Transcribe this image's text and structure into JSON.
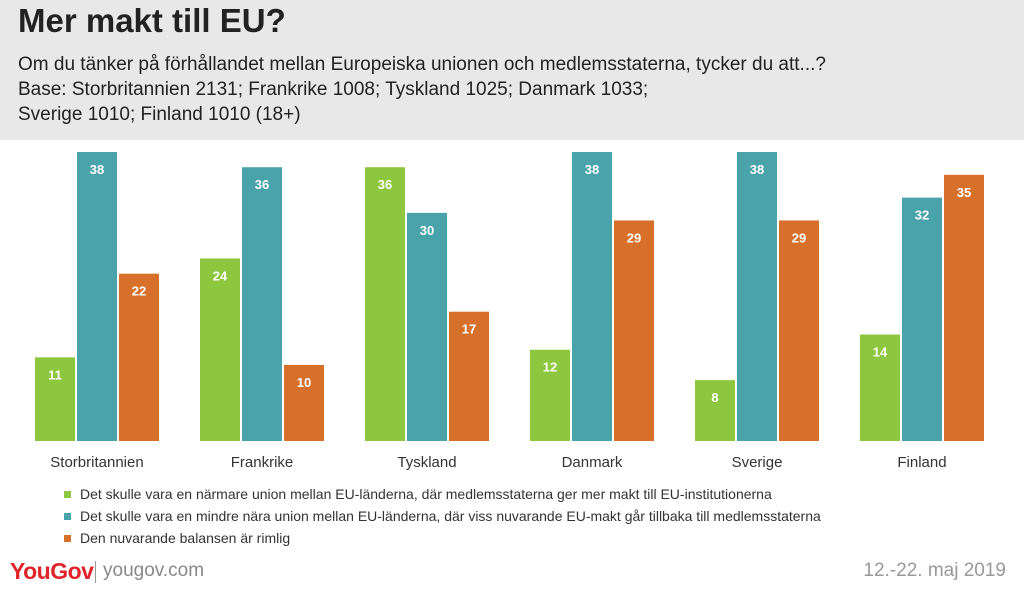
{
  "header": {
    "title": "Mer makt till EU?",
    "subtitle_lines": [
      "Om du tänker på förhållandet mellan Europeiska unionen och medlemsstaterna, tycker du att...?",
      "Base: Storbritannien 2131; Frankrike 1008; Tyskland 1025; Danmark 1033;",
      "Sverige 1010; Finland 1010 (18+)"
    ]
  },
  "chart_data": {
    "type": "bar",
    "categories": [
      "Storbritannien",
      "Frankrike",
      "Tyskland",
      "Danmark",
      "Sverige",
      "Finland"
    ],
    "series": [
      {
        "name": "Det skulle vara en närmare union mellan EU-länderna, där medlemsstaterna ger mer makt till EU-institutionerna",
        "color": "#8dc63f",
        "values": [
          11,
          24,
          36,
          12,
          8,
          14
        ]
      },
      {
        "name": "Det skulle vara en mindre nära union mellan EU-länderna, där viss nuvarande EU-makt går tillbaka till medlemsstaterna",
        "color": "#4aa3ab",
        "values": [
          38,
          36,
          30,
          38,
          38,
          32
        ]
      },
      {
        "name": "Den nuvarande balansen är rimlig",
        "color": "#d6702a",
        "values": [
          22,
          10,
          17,
          29,
          29,
          35
        ]
      }
    ],
    "ylim": [
      0,
      38
    ],
    "grid": false,
    "legend": "bottom-left",
    "data_labels": true
  },
  "footer": {
    "logo_you": "You",
    "logo_gov": "Gov",
    "site": "yougov.com",
    "date": "12.-22. maj 2019"
  },
  "colors": {
    "brand_red": "#e0242b",
    "header_bg": "#e8e8e8"
  }
}
